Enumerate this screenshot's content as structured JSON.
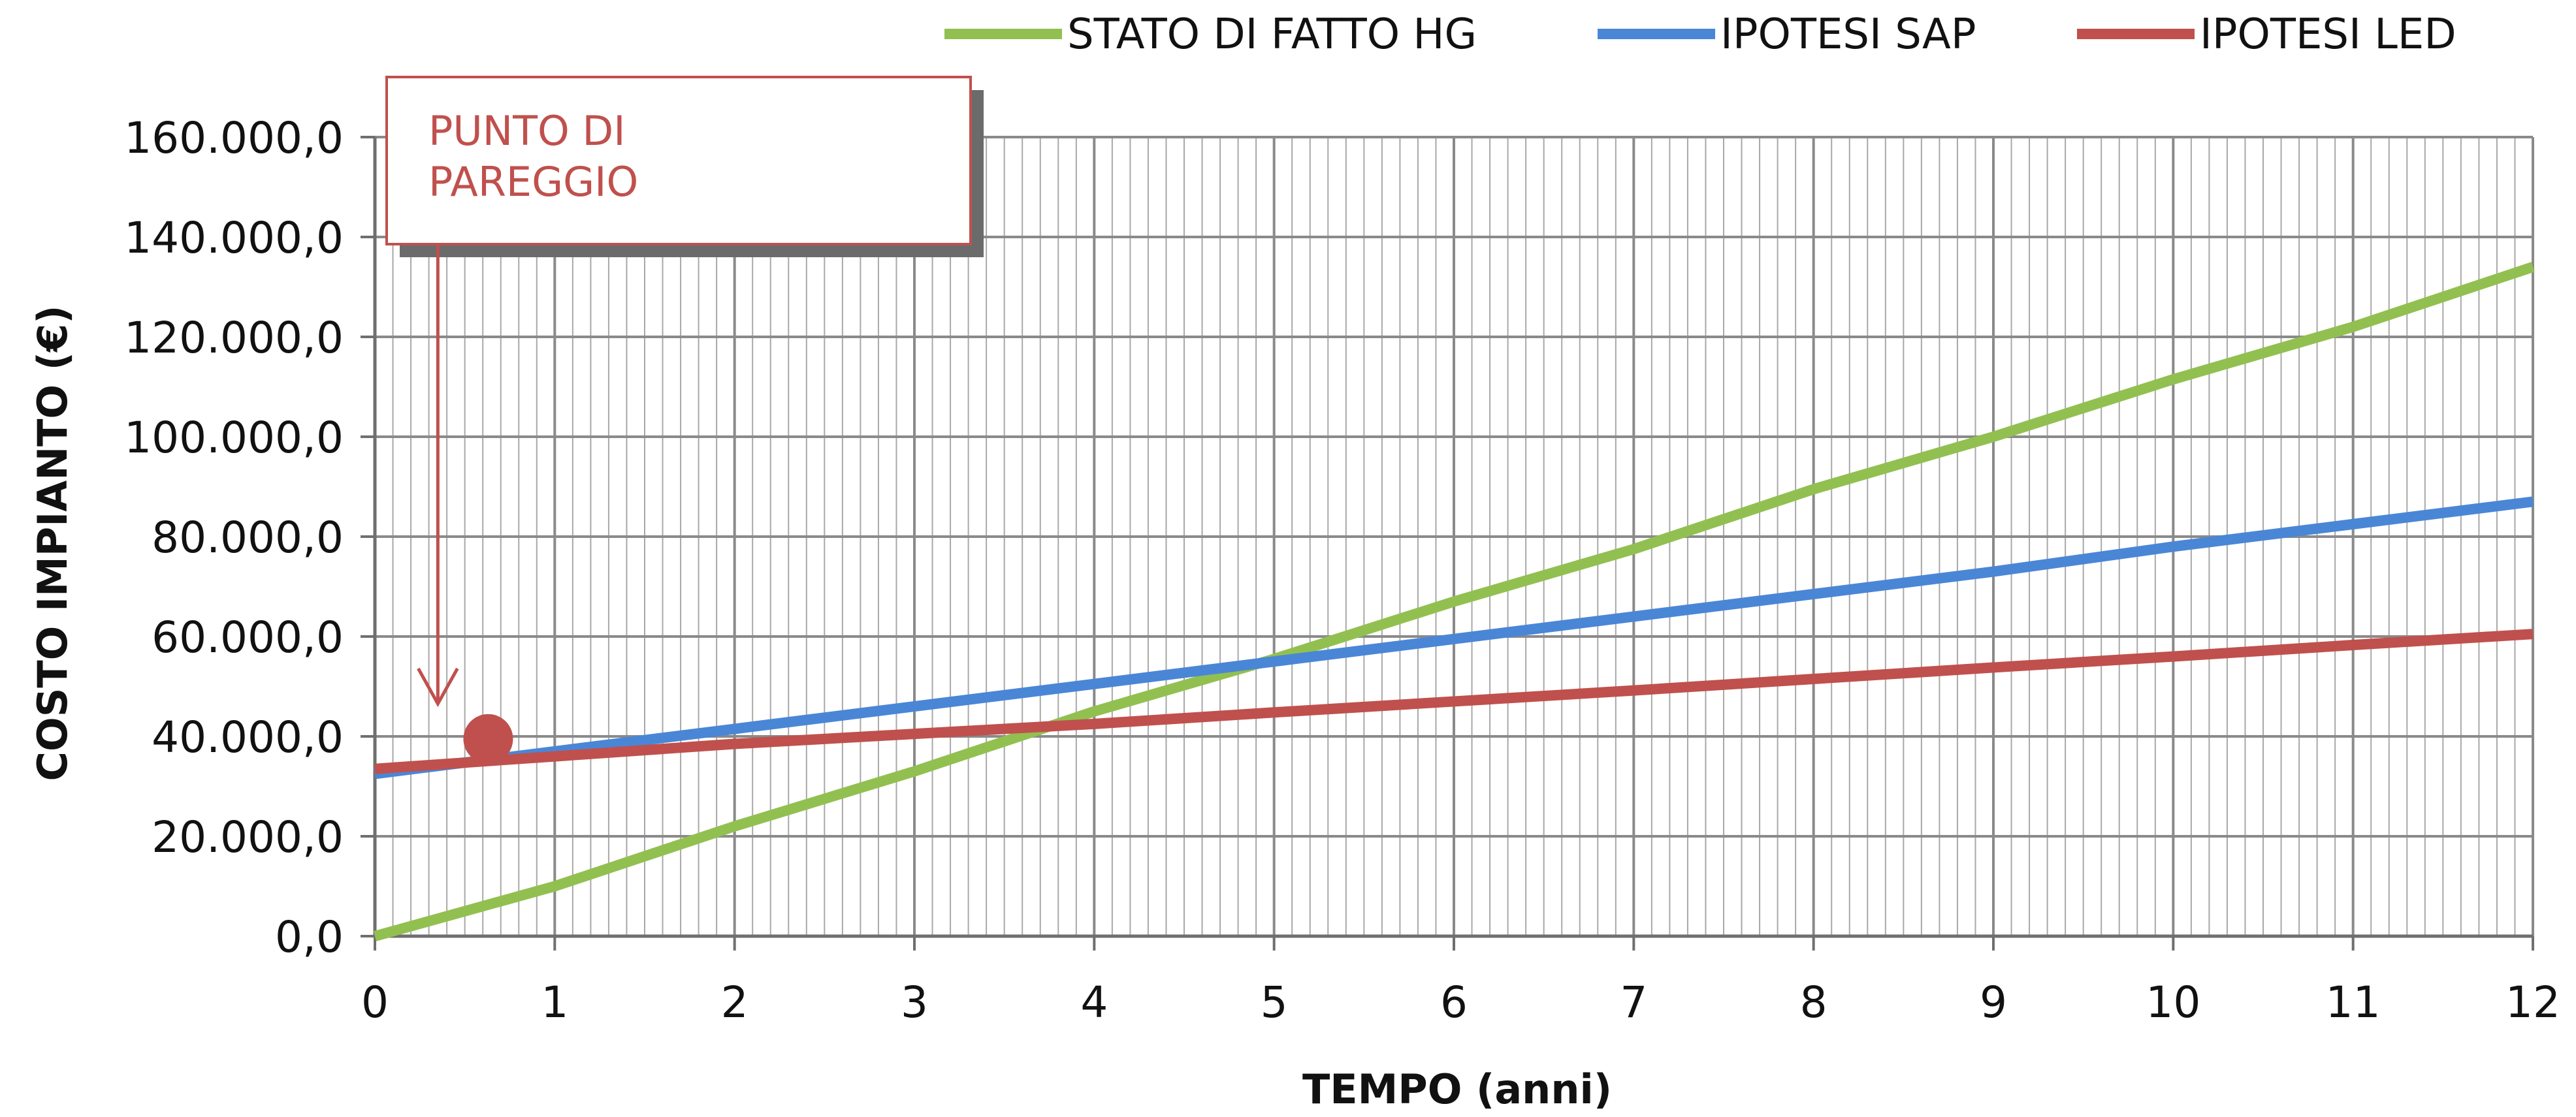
{
  "chart_data": {
    "type": "line",
    "title": "",
    "xlabel": "TEMPO (anni)",
    "ylabel": "COSTO IMPIANTO (€)",
    "xlim": [
      0,
      12
    ],
    "ylim": [
      0,
      160000
    ],
    "x_ticks": [
      0,
      1,
      2,
      3,
      4,
      5,
      6,
      7,
      8,
      9,
      10,
      11,
      12
    ],
    "x_tick_labels": [
      "0",
      "1",
      "2",
      "3",
      "4",
      "5",
      "6",
      "7",
      "8",
      "9",
      "10",
      "11",
      "12"
    ],
    "y_ticks": [
      0,
      20000,
      40000,
      60000,
      80000,
      100000,
      120000,
      140000,
      160000
    ],
    "y_tick_labels": [
      "0,0",
      "20.000,0",
      "40.000,0",
      "60.000,0",
      "80.000,0",
      "100.000,0",
      "120.000,0",
      "140.000,0",
      "160.000,0"
    ],
    "grid": true,
    "minor_grid_x": true,
    "legend_position": "top-right",
    "x": [
      0,
      1,
      2,
      3,
      4,
      5,
      6,
      7,
      8,
      9,
      10,
      11,
      12
    ],
    "series": [
      {
        "name": "STATO DI FATTO HG",
        "color": "#92c050",
        "values": [
          0,
          10000,
          22000,
          33000,
          45000,
          55500,
          67000,
          77500,
          89500,
          100000,
          111500,
          122000,
          134000
        ]
      },
      {
        "name": "IPOTESI SAP",
        "color": "#4a86d6",
        "values": [
          32500,
          37000,
          41500,
          46000,
          50500,
          55000,
          59500,
          64000,
          68500,
          73000,
          78000,
          82500,
          87000
        ]
      },
      {
        "name": "IPOTESI LED",
        "color": "#c0504d",
        "values": [
          33500,
          36000,
          38500,
          40500,
          42500,
          44800,
          47000,
          49200,
          51500,
          53800,
          56000,
          58300,
          60500
        ]
      }
    ],
    "annotations": [
      {
        "text_lines": [
          "PUNTO DI",
          "PAREGGIO"
        ],
        "color": "#c0504d",
        "marker": {
          "x": 0.63,
          "y": 39500
        },
        "arrow_x": 0.35
      }
    ]
  }
}
